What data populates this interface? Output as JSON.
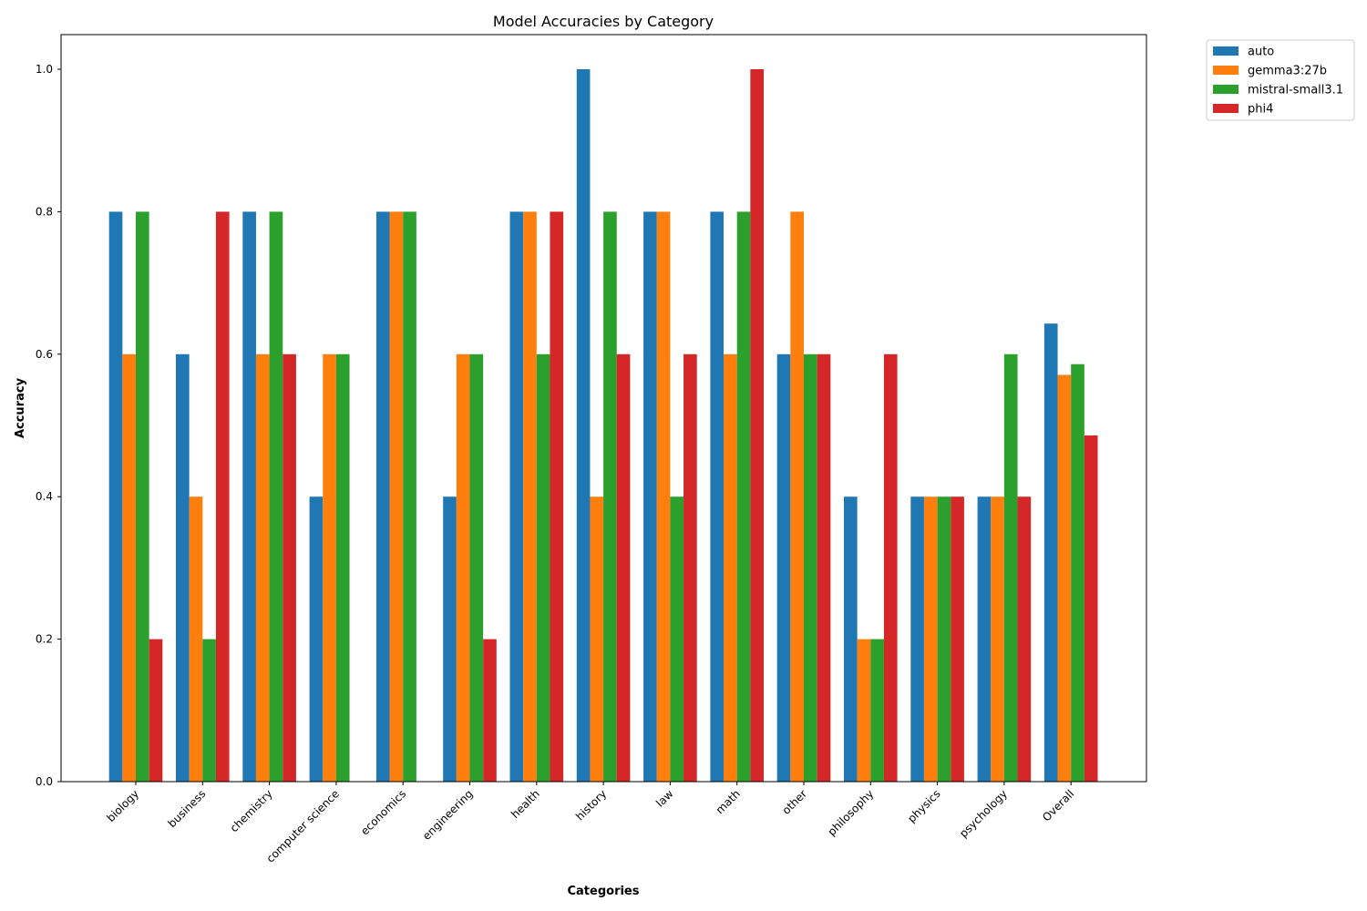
{
  "chart_data": {
    "type": "bar",
    "title": "Model Accuracies by Category",
    "xlabel": "Categories",
    "ylabel": "Accuracy",
    "ylim": [
      0,
      1.05
    ],
    "yticks": [
      "0.0",
      "0.2",
      "0.4",
      "0.6",
      "0.8",
      "1.0"
    ],
    "grid": false,
    "legend_position": "outside-top-right",
    "categories": [
      "biology",
      "business",
      "chemistry",
      "computer science",
      "economics",
      "engineering",
      "health",
      "history",
      "law",
      "math",
      "other",
      "philosophy",
      "physics",
      "psychology",
      "Overall"
    ],
    "series": [
      {
        "name": "auto",
        "color": "#1f77b4",
        "values": [
          0.8,
          0.6,
          0.8,
          0.4,
          0.8,
          0.4,
          0.8,
          1.0,
          0.8,
          0.8,
          0.6,
          0.4,
          0.4,
          0.4,
          0.643
        ]
      },
      {
        "name": "gemma3:27b",
        "color": "#ff7f0e",
        "values": [
          0.6,
          0.4,
          0.6,
          0.6,
          0.8,
          0.6,
          0.8,
          0.4,
          0.8,
          0.6,
          0.8,
          0.2,
          0.4,
          0.4,
          0.571
        ]
      },
      {
        "name": "mistral-small3.1",
        "color": "#2ca02c",
        "values": [
          0.8,
          0.2,
          0.8,
          0.6,
          0.8,
          0.6,
          0.6,
          0.8,
          0.4,
          0.8,
          0.6,
          0.2,
          0.4,
          0.6,
          0.586
        ]
      },
      {
        "name": "phi4",
        "color": "#d62728",
        "values": [
          0.2,
          0.8,
          0.6,
          0.0,
          0.0,
          0.2,
          0.8,
          0.6,
          0.6,
          1.0,
          0.6,
          0.6,
          0.4,
          0.4,
          0.486
        ]
      }
    ]
  }
}
